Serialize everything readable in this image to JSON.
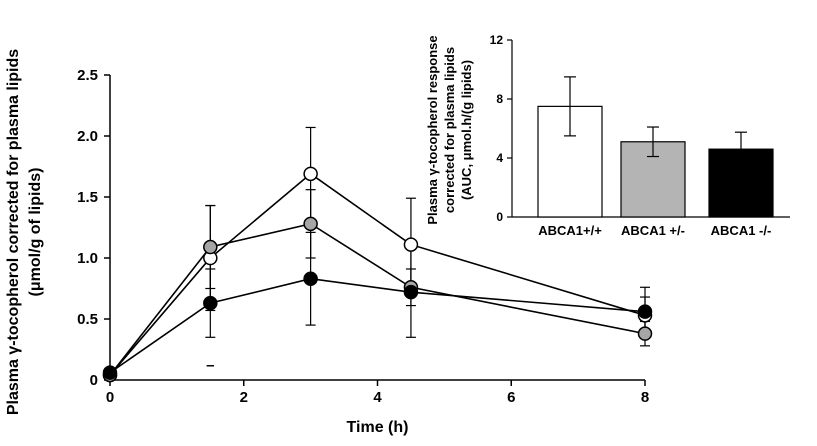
{
  "chart_data": [
    {
      "type": "line",
      "xlabel": "Time (h)",
      "ylabel_lines": [
        "Plasma γ-tocopherol corrected for plasma lipids",
        "(μmol/g of lipids)"
      ],
      "xlim": [
        0,
        8
      ],
      "ylim": [
        0,
        2.5
      ],
      "xticks": [
        "0",
        "2",
        "4",
        "6",
        "8"
      ],
      "yticks": [
        "0",
        "0.5",
        "1.0",
        "1.5",
        "2.0",
        "2.5"
      ],
      "grid": false,
      "series": [
        {
          "name": "ABCA1+/+",
          "marker": "open-circle",
          "color": "#ffffff",
          "x": [
            0,
            1.5,
            3,
            4.5,
            8
          ],
          "y": [
            0.04,
            1.0,
            1.69,
            1.11,
            0.53
          ],
          "err": [
            0.03,
            0.43,
            0.38,
            0.38,
            0.15
          ]
        },
        {
          "name": "ABCA1 +/-",
          "marker": "gray-circle",
          "color": "#a6a6a6",
          "x": [
            0,
            1.5,
            3,
            4.5,
            8
          ],
          "y": [
            0.04,
            1.09,
            1.28,
            0.76,
            0.38
          ],
          "err": [
            0.03,
            0.34,
            0.28,
            0.15,
            0.1
          ]
        },
        {
          "name": "ABCA1 -/-",
          "marker": "filled-circle",
          "color": "#000000",
          "x": [
            0,
            1.5,
            3,
            4.5,
            8
          ],
          "y": [
            0.06,
            0.63,
            0.83,
            0.72,
            0.56
          ],
          "err": [
            0.03,
            0.28,
            0.38,
            0.37,
            0.2
          ]
        }
      ],
      "annotations": [
        "–"
      ]
    },
    {
      "type": "bar",
      "categories": [
        "ABCA1+/+",
        "ABCA1 +/-",
        "ABCA1 -/-"
      ],
      "values": [
        7.5,
        5.1,
        4.6
      ],
      "errors": [
        2.0,
        1.0,
        1.15
      ],
      "colors": [
        "#ffffff",
        "#b4b4b4",
        "#000000"
      ],
      "ylabel_lines": [
        "Plasma γ-tocopherol response",
        "corrected for plasma lipids",
        "(AUC, μmol.h/(g lipids)"
      ],
      "ylim": [
        0,
        12
      ],
      "yticks": [
        "0",
        "4",
        "8",
        "12"
      ],
      "grid": false
    }
  ]
}
